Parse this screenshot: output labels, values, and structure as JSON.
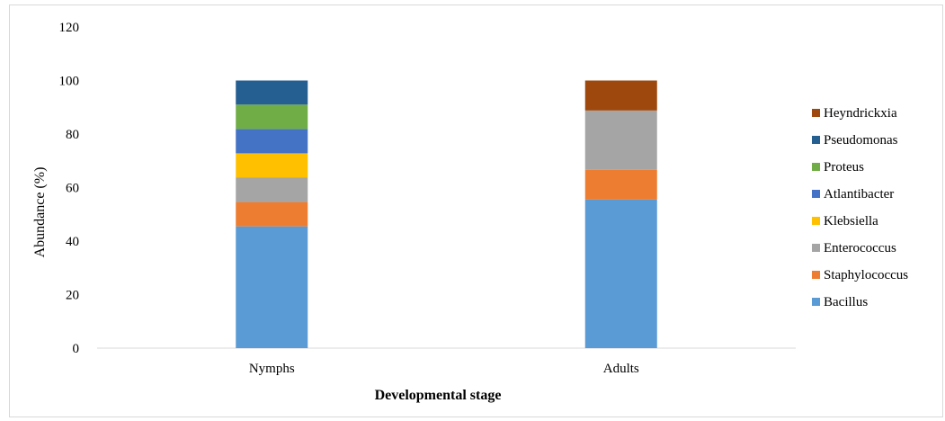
{
  "chart_data": {
    "type": "bar",
    "stacked": true,
    "title": "",
    "xlabel": "Developmental stage",
    "ylabel": "Abundance (%)",
    "ylim": [
      0,
      120
    ],
    "yticks": [
      0,
      20,
      40,
      60,
      80,
      100,
      120
    ],
    "grid": false,
    "legend_position": "right",
    "categories": [
      "Nymphs",
      "Adults"
    ],
    "series": [
      {
        "name": "Bacillus",
        "color": "#5b9bd5",
        "values": [
          45.5,
          55.5
        ]
      },
      {
        "name": "Staphylococcus",
        "color": "#ed7d31",
        "values": [
          9.1,
          11.1
        ]
      },
      {
        "name": "Enterococcus",
        "color": "#a5a5a5",
        "values": [
          9.1,
          22.2
        ]
      },
      {
        "name": "Klebsiella",
        "color": "#ffc000",
        "values": [
          9.1,
          0
        ]
      },
      {
        "name": "Atlantibacter",
        "color": "#4472c4",
        "values": [
          9.1,
          0
        ]
      },
      {
        "name": "Proteus",
        "color": "#70ad47",
        "values": [
          9.1,
          0
        ]
      },
      {
        "name": "Pseudomonas",
        "color": "#255e91",
        "values": [
          9.0,
          0
        ]
      },
      {
        "name": "Heyndrickxia",
        "color": "#9e480e",
        "values": [
          0,
          11.2
        ]
      }
    ]
  }
}
